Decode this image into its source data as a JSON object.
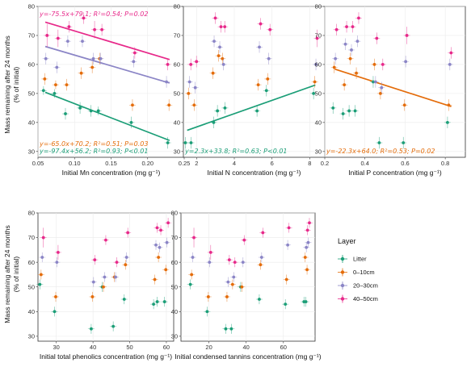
{
  "figure": {
    "ylabel_line1": "Mass remaining after 24 months",
    "ylabel_line2": "(% of initial)",
    "legend_title": "Layer"
  },
  "colors": {
    "Litter": "#1b9e77",
    "0-10cm": "#e46c0a",
    "20-30cm": "#8b85c6",
    "40-50cm": "#e7298a"
  },
  "chart_data": [
    {
      "type": "scatter",
      "xlabel": "Initial Mn concentration (mg g⁻¹)",
      "xlim": [
        0.05,
        0.25
      ],
      "xticks": [
        0.05,
        0.1,
        0.15,
        0.2,
        0.25
      ],
      "xtick_labels": [
        "0.05",
        "0.10",
        "0.15",
        "0.20",
        "0.25"
      ],
      "ylim": [
        28,
        80
      ],
      "yticks": [
        30,
        40,
        50,
        60,
        70,
        80
      ],
      "grid": true,
      "series": [
        {
          "name": "Litter",
          "x": [
            0.06,
            0.075,
            0.09,
            0.11,
            0.125,
            0.135,
            0.18,
            0.23
          ],
          "y": [
            51,
            50,
            43,
            45,
            44,
            44,
            40,
            33
          ],
          "yerr": [
            1.5,
            1.5,
            2,
            2,
            2,
            1.5,
            2,
            2
          ]
        },
        {
          "name": "0-10cm",
          "x": [
            0.06,
            0.075,
            0.09,
            0.11,
            0.125,
            0.135,
            0.18,
            0.23
          ],
          "y": [
            55,
            53,
            53,
            57,
            59,
            62,
            46,
            46
          ],
          "yerr": [
            2,
            1.5,
            2,
            2,
            2,
            2,
            2,
            2
          ]
        },
        {
          "name": "20-30cm",
          "x": [
            0.06,
            0.075,
            0.09,
            0.11,
            0.125,
            0.135,
            0.18,
            0.225
          ],
          "y": [
            62,
            59,
            68,
            68,
            62,
            62,
            61,
            54
          ],
          "yerr": [
            2,
            2,
            2,
            2,
            2,
            2,
            2,
            2
          ]
        },
        {
          "name": "40-50cm",
          "x": [
            0.06,
            0.075,
            0.09,
            0.11,
            0.125,
            0.135,
            0.18,
            0.225
          ],
          "y": [
            70,
            69,
            73,
            76,
            72,
            72,
            64,
            60
          ],
          "yerr": [
            4,
            3,
            2,
            2,
            3,
            2,
            2,
            2
          ]
        }
      ],
      "fits": [
        {
          "series": "40-50cm",
          "x": [
            0.06,
            0.23
          ],
          "y": [
            74.6,
            61.7
          ]
        },
        {
          "series": "20-30cm",
          "x": [
            0.06,
            0.23
          ],
          "y": [
            66.2,
            53.6
          ]
        },
        {
          "series": "Litter",
          "x": [
            0.06,
            0.23
          ],
          "y": [
            50.4,
            33.8
          ]
        }
      ],
      "equations": [
        {
          "series": "40-50cm",
          "text": "y=-75.5x+79.1; R²=0.54; P=0.02",
          "pos": "top"
        },
        {
          "series": "0-10cm",
          "text": "y=-65.0x+70.2; R²=0.51; P=0.03",
          "pos": "bottom2"
        },
        {
          "series": "Litter",
          "text": "y=-97.4x+56.2; R²=0.93; P<0.01",
          "pos": "bottom1"
        }
      ]
    },
    {
      "type": "scatter",
      "xlabel": "Initial N concentration (mg g⁻¹)",
      "xlim": [
        1.3,
        8.8
      ],
      "xticks": [
        2,
        4,
        6,
        8
      ],
      "xtick_labels": [
        "2",
        "4",
        "6",
        "8"
      ],
      "ylim": [
        28,
        80
      ],
      "yticks": [
        30,
        40,
        50,
        60,
        70,
        80
      ],
      "grid": true,
      "series": [
        {
          "name": "Litter",
          "x": [
            1.5,
            1.8,
            3.0,
            3.2,
            3.6,
            5.3,
            5.8,
            8.3
          ],
          "y": [
            33,
            33,
            40,
            44,
            45,
            44,
            51,
            50
          ],
          "yerr": [
            2,
            2,
            2,
            2,
            2,
            2,
            2,
            2
          ]
        },
        {
          "name": "0-10cm",
          "x": [
            1.6,
            1.9,
            2.9,
            3.2,
            3.4,
            5.3,
            5.8,
            8.3
          ],
          "y": [
            50,
            46,
            57,
            63,
            62,
            53,
            55,
            54
          ],
          "yerr": [
            2,
            2,
            2,
            2,
            2,
            2,
            2,
            2
          ]
        },
        {
          "name": "20-30cm",
          "x": [
            1.6,
            1.9,
            2.9,
            3.2,
            3.4,
            5.3,
            5.8,
            8.3
          ],
          "y": [
            54,
            52,
            68,
            66,
            60,
            66,
            62,
            60
          ],
          "yerr": [
            2,
            2,
            2,
            2,
            2,
            2,
            2,
            2
          ]
        },
        {
          "name": "40-50cm",
          "x": [
            1.6,
            1.9,
            2.9,
            3.2,
            3.4,
            5.3,
            5.8,
            8.3
          ],
          "y": [
            60,
            61,
            76,
            73,
            73,
            74,
            72,
            69
          ],
          "yerr": [
            2,
            2,
            2,
            2,
            2,
            2,
            2,
            3
          ]
        }
      ],
      "fits": [
        {
          "series": "Litter",
          "x": [
            1.5,
            8.3
          ],
          "y": [
            37.3,
            52.9
          ]
        }
      ],
      "equations": [
        {
          "series": "Litter",
          "text": "y=2.3x+33.8; R²=0.63; P<0.01",
          "pos": "bottom1"
        }
      ]
    },
    {
      "type": "scatter",
      "xlabel": "Initial P concentration (mg g⁻¹)",
      "xlim": [
        0.2,
        0.9
      ],
      "xticks": [
        0.2,
        0.4,
        0.6,
        0.8
      ],
      "xtick_labels": [
        "0.2",
        "0.4",
        "0.6",
        "0.8"
      ],
      "ylim": [
        28,
        80
      ],
      "yticks": [
        30,
        40,
        50,
        60,
        70,
        80
      ],
      "grid": true,
      "series": [
        {
          "name": "Litter",
          "x": [
            0.25,
            0.3,
            0.33,
            0.36,
            0.45,
            0.48,
            0.6,
            0.82
          ],
          "y": [
            45,
            43,
            44,
            44,
            54,
            33,
            33,
            40
          ],
          "yerr": [
            2,
            2,
            2,
            2,
            2,
            2,
            2,
            2
          ]
        },
        {
          "name": "0-10cm",
          "x": [
            0.25,
            0.3,
            0.33,
            0.36,
            0.45,
            0.48,
            0.6,
            0.82
          ],
          "y": [
            59,
            53,
            62,
            57,
            60,
            50,
            46,
            46
          ],
          "yerr": [
            2,
            2,
            2,
            2,
            2,
            2,
            2,
            2
          ]
        },
        {
          "name": "20-30cm",
          "x": [
            0.25,
            0.3,
            0.33,
            0.36,
            0.45,
            0.48,
            0.6,
            0.82
          ],
          "y": [
            62,
            67,
            65,
            68,
            54,
            52,
            61,
            60
          ],
          "yerr": [
            2,
            2,
            2,
            2,
            2,
            2,
            2,
            2
          ]
        },
        {
          "name": "40-50cm",
          "x": [
            0.25,
            0.3,
            0.33,
            0.36,
            0.45,
            0.48,
            0.6,
            0.82
          ],
          "y": [
            72,
            73,
            73,
            76,
            69,
            60,
            70,
            64
          ],
          "yerr": [
            2,
            2,
            2,
            2,
            2,
            2,
            3,
            2
          ]
        }
      ],
      "fits": [
        {
          "series": "0-10cm",
          "x": [
            0.25,
            0.83
          ],
          "y": [
            58.4,
            45.5
          ]
        }
      ],
      "equations": [
        {
          "series": "0-10cm",
          "text": "y=-22.3x+64.0; R²=0.53; P=0.02",
          "pos": "bottom1"
        }
      ]
    },
    {
      "type": "scatter",
      "xlabel": "Initial total phenolics concentration (mg g⁻¹)",
      "xlim": [
        25,
        62
      ],
      "xticks": [
        30,
        40,
        50,
        60
      ],
      "xtick_labels": [
        "30",
        "40",
        "50",
        "60"
      ],
      "ylim": [
        28,
        80
      ],
      "yticks": [
        30,
        40,
        50,
        60,
        70,
        80
      ],
      "grid": true,
      "series": [
        {
          "name": "Litter",
          "x": [
            26,
            30,
            40,
            43,
            46,
            49,
            57,
            58,
            60
          ],
          "y": [
            51,
            40,
            33,
            50,
            34,
            45,
            43,
            44,
            44
          ],
          "yerr": [
            2,
            2,
            2,
            2,
            2,
            2,
            2,
            2,
            2
          ]
        },
        {
          "name": "0-10cm",
          "x": [
            26,
            30,
            40,
            43,
            46,
            49,
            57,
            58,
            60
          ],
          "y": [
            55,
            46,
            46,
            50,
            54,
            59,
            53,
            62,
            57
          ],
          "yerr": [
            2,
            2,
            2,
            2,
            2,
            2,
            2,
            2,
            2
          ]
        },
        {
          "name": "20-30cm",
          "x": [
            26,
            30,
            40,
            43,
            46,
            49,
            57,
            58,
            60
          ],
          "y": [
            62,
            60,
            52,
            54,
            54,
            62,
            67,
            66,
            68
          ],
          "yerr": [
            2,
            2,
            2,
            2,
            2,
            2,
            2,
            2,
            2
          ]
        },
        {
          "name": "40-50cm",
          "x": [
            26,
            30,
            40,
            43,
            46,
            49,
            57,
            58,
            60
          ],
          "y": [
            70,
            64,
            61,
            69,
            60,
            72,
            74,
            73,
            76
          ],
          "yerr": [
            4,
            3,
            2,
            2,
            2,
            2,
            2,
            2,
            2
          ]
        }
      ],
      "fits": [],
      "equations": []
    },
    {
      "type": "scatter",
      "xlabel": "Initial condensed tannins concentration (mg g⁻¹)",
      "xlim": [
        5,
        77
      ],
      "xticks": [
        20,
        40,
        60
      ],
      "xtick_labels": [
        "20",
        "40",
        "60"
      ],
      "ylim": [
        28,
        80
      ],
      "yticks": [
        30,
        40,
        50,
        60,
        70,
        80
      ],
      "grid": true,
      "series": [
        {
          "name": "Litter",
          "x": [
            11,
            20,
            30,
            33,
            38,
            48,
            62,
            72,
            73
          ],
          "y": [
            51,
            40,
            33,
            33,
            50,
            45,
            43,
            44,
            44
          ],
          "yerr": [
            2,
            2,
            2,
            2,
            2,
            2,
            2,
            2,
            2
          ]
        },
        {
          "name": "0-10cm",
          "x": [
            11,
            20,
            30,
            33,
            38,
            48,
            62,
            72,
            73
          ],
          "y": [
            55,
            46,
            46,
            51,
            50,
            59,
            53,
            62,
            57
          ],
          "yerr": [
            2,
            2,
            2,
            2,
            2,
            2,
            2,
            2,
            2
          ]
        },
        {
          "name": "20-30cm",
          "x": [
            11,
            20,
            30,
            33,
            38,
            48,
            62,
            72,
            73
          ],
          "y": [
            62,
            60,
            52,
            54,
            60,
            62,
            67,
            66,
            68
          ],
          "yerr": [
            2,
            2,
            2,
            2,
            2,
            2,
            2,
            2,
            2
          ]
        },
        {
          "name": "40-50cm",
          "x": [
            11,
            20,
            30,
            33,
            38,
            48,
            62,
            72,
            73
          ],
          "y": [
            70,
            64,
            61,
            60,
            69,
            72,
            74,
            73,
            76
          ],
          "yerr": [
            4,
            3,
            2,
            2,
            2,
            2,
            2,
            2,
            2
          ]
        }
      ],
      "fits": [],
      "equations": []
    }
  ],
  "legend": {
    "title": "Layer",
    "items": [
      {
        "series": "Litter",
        "label": "Litter"
      },
      {
        "series": "0-10cm",
        "label": "0–10cm"
      },
      {
        "series": "20-30cm",
        "label": "20–30cm"
      },
      {
        "series": "40-50cm",
        "label": "40–50cm"
      }
    ]
  }
}
